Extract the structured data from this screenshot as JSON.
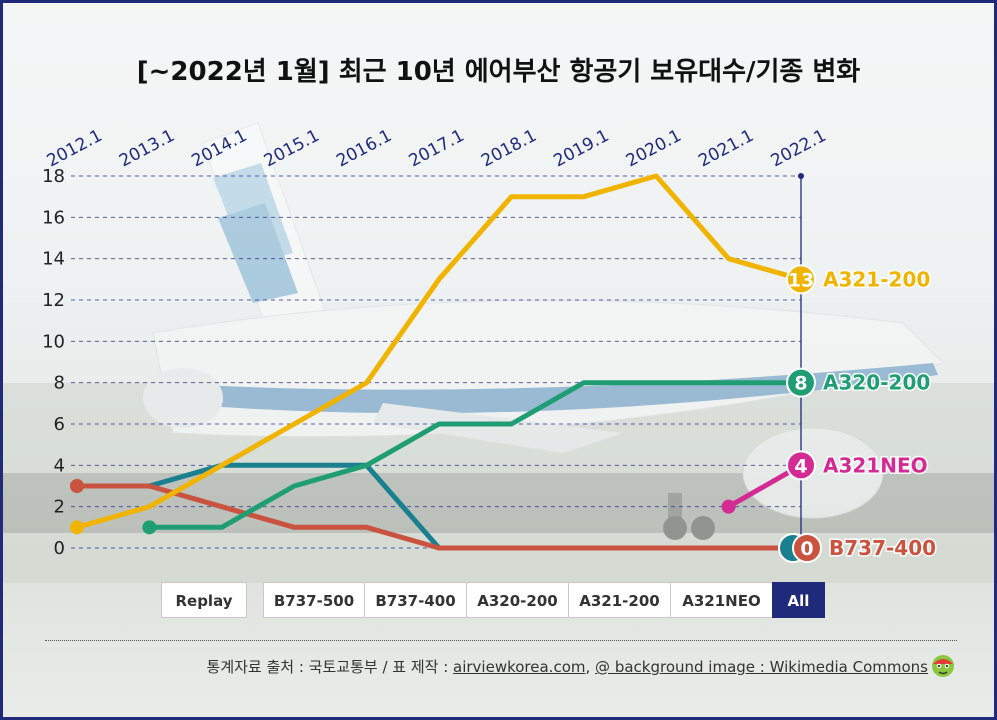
{
  "title": "[~2022년 1월] 최근 10년 에어부산 항공기 보유대수/기종 변화",
  "chart_data": {
    "type": "line",
    "title": "[~2022년 1월] 최근 10년 에어부산 항공기 보유대수/기종 변화",
    "categories": [
      "2012.1",
      "2013.1",
      "2014.1",
      "2015.1",
      "2016.1",
      "2017.1",
      "2018.1",
      "2019.1",
      "2020.1",
      "2021.1",
      "2022.1"
    ],
    "y_ticks": [
      0,
      2,
      4,
      6,
      8,
      10,
      12,
      14,
      16,
      18
    ],
    "ylim": [
      0,
      18
    ],
    "grid": true,
    "series": [
      {
        "name": "B737-500",
        "color": "#1a7f8e",
        "values": [
          3,
          3,
          4,
          4,
          4,
          0,
          0,
          0,
          0,
          0,
          0
        ],
        "end_label": "",
        "end_value": "0",
        "show_markers": false
      },
      {
        "name": "B737-400",
        "color": "#c9533f",
        "values": [
          3,
          3,
          2,
          1,
          1,
          0,
          0,
          0,
          0,
          0,
          0
        ],
        "end_label": "B737-400",
        "end_value": "0",
        "show_markers": true
      },
      {
        "name": "A320-200",
        "color": "#1f9e74",
        "values": [
          null,
          1,
          1,
          3,
          4,
          6,
          6,
          8,
          8,
          8,
          8
        ],
        "end_label": "A320-200",
        "end_value": "8",
        "show_markers": true
      },
      {
        "name": "A321-200",
        "color": "#f0b400",
        "values": [
          1,
          2,
          4,
          6,
          8,
          13,
          17,
          17,
          18,
          14,
          13
        ],
        "end_label": "A321-200",
        "end_value": "13",
        "show_markers": true
      },
      {
        "name": "A321NEO",
        "color": "#d42a93",
        "values": [
          null,
          null,
          null,
          null,
          null,
          null,
          null,
          null,
          null,
          2,
          4
        ],
        "end_label": "A321NEO",
        "end_value": "4",
        "show_markers": true
      }
    ]
  },
  "controls": {
    "replay": "Replay",
    "filters": [
      "B737-500",
      "B737-400",
      "A320-200",
      "A321-200",
      "A321NEO",
      "All"
    ],
    "active": "All"
  },
  "source": {
    "prefix": "통계자료 출처 : 국토교통부 / 표 제작 : ",
    "site": "airviewkorea.com",
    "sep": ", ",
    "bg": "@ background image : Wikimedia Commons"
  },
  "colors": {
    "frame": "#1f2a7a",
    "axis": "#1f2a7a",
    "grid": "#2c3a9a"
  }
}
